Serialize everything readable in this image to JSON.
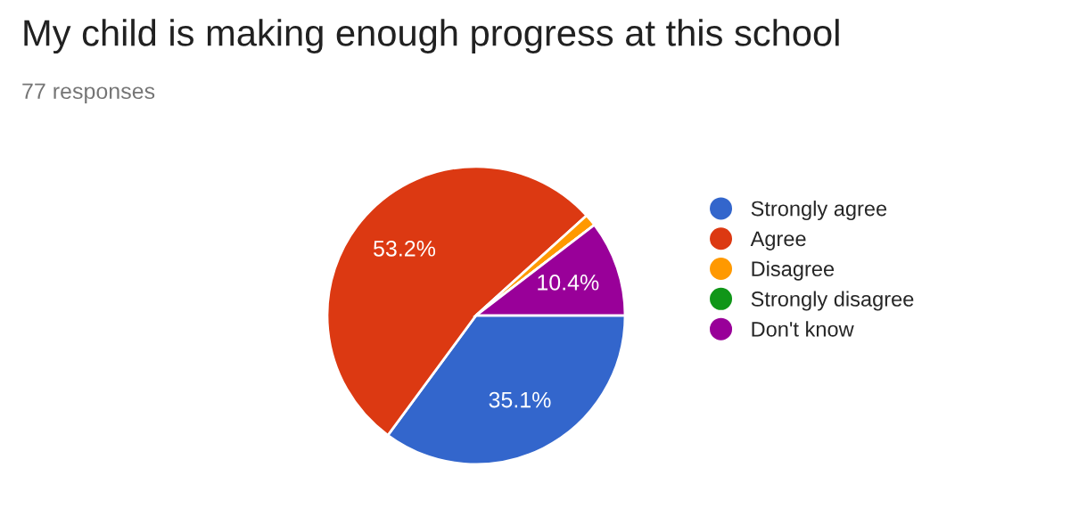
{
  "chart_data": {
    "type": "pie",
    "title": "My child is making enough progress at this school",
    "subtitle": "77 responses",
    "categories": [
      "Strongly agree",
      "Agree",
      "Disagree",
      "Strongly disagree",
      "Don't know"
    ],
    "values": [
      35.1,
      53.2,
      1.3,
      0,
      10.4
    ],
    "colors": [
      "#3366cc",
      "#dc3912",
      "#ff9900",
      "#109618",
      "#990099"
    ],
    "value_labels": [
      "35.1%",
      "53.2%",
      null,
      null,
      "10.4%"
    ],
    "legend": "right"
  }
}
